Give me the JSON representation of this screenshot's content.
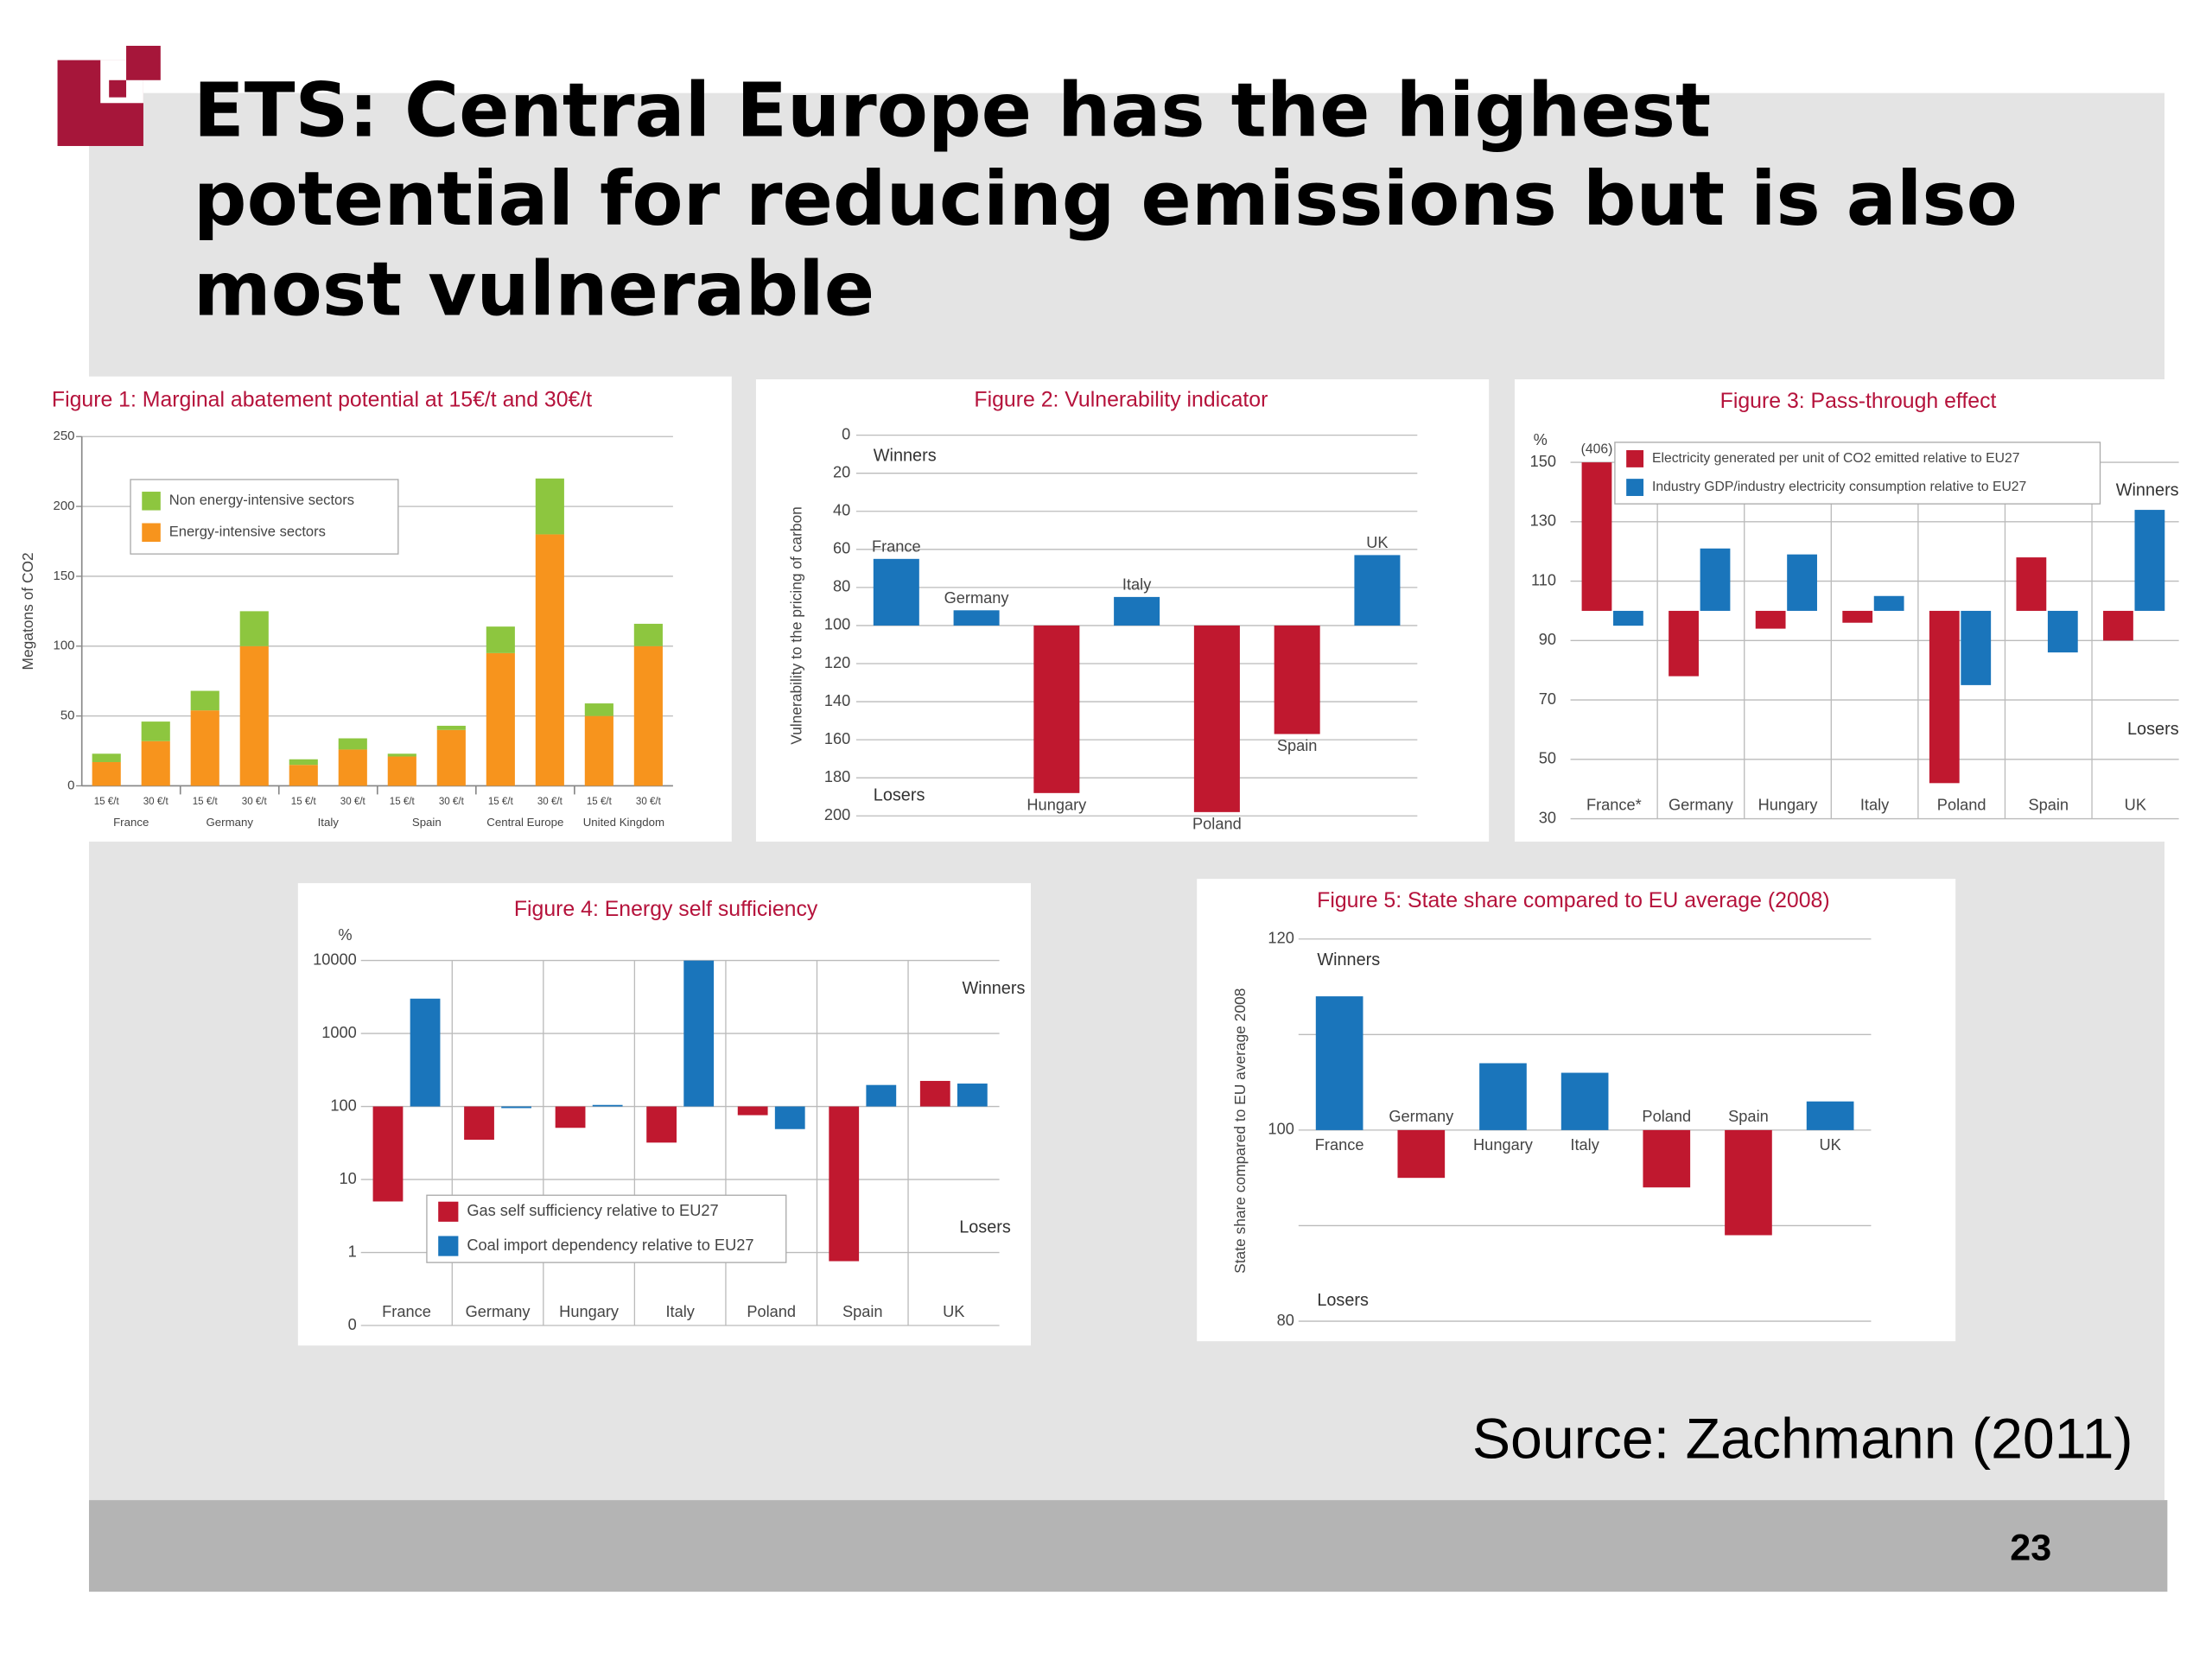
{
  "title": [
    "ETS: Central Europe has the highest",
    "potential for reducing emissions but is also",
    "most vulnerable"
  ],
  "source": "Source: Zachmann (2011)",
  "page_number": "23",
  "chart_data": [
    {
      "type": "stacked_bar",
      "title": "Figure 1: Marginal abatement potential at 15€/t and 30€/t",
      "ylabel": "Megatons of CO2",
      "categories": [
        "15 €/t",
        "30 €/t",
        "15 €/t",
        "30 €/t",
        "15 €/t",
        "30 €/t",
        "15 €/t",
        "30 €/t",
        "15 €/t",
        "30 €/t",
        "15 €/t",
        "30 €/t"
      ],
      "groups": [
        "France",
        "Germany",
        "Italy",
        "Spain",
        "Central Europe",
        "United Kingdom"
      ],
      "series": [
        {
          "name": "Energy-intensive sectors",
          "color": "#f7941d",
          "values": [
            17,
            32,
            54,
            100,
            15,
            26,
            21,
            40,
            95,
            180,
            50,
            100
          ]
        },
        {
          "name": "Non energy-intensive sectors",
          "color": "#8dc63f",
          "values": [
            6,
            14,
            14,
            25,
            4,
            8,
            2,
            3,
            19,
            40,
            9,
            16
          ]
        }
      ],
      "ylim": [
        0,
        250
      ],
      "yticks": [
        0,
        50,
        100,
        150,
        200,
        250
      ],
      "grid": true
    },
    {
      "type": "baseline_bar",
      "title": "Figure 2: Vulnerability indicator",
      "ylabel": "Vulnerability to the pricing of carbon",
      "categories": [
        "France",
        "Germany",
        "Hungary",
        "Italy",
        "Poland",
        "Spain",
        "UK"
      ],
      "values": [
        65,
        92,
        188,
        85,
        198,
        157,
        63
      ],
      "colors": [
        "#1a75bb",
        "#1a75bb",
        "#c0182f",
        "#1a75bb",
        "#c0182f",
        "#c0182f",
        "#1a75bb"
      ],
      "baseline": 100,
      "ylim": [
        0,
        200
      ],
      "y_inverted": true,
      "yticks": [
        0,
        20,
        40,
        60,
        80,
        100,
        120,
        140,
        160,
        180,
        200
      ],
      "grid": true,
      "annotations": [
        "Winners",
        "Losers"
      ]
    },
    {
      "type": "grouped_baseline_bar",
      "title": "Figure 3: Pass-through effect",
      "yunit": "%",
      "categories": [
        "France*",
        "Germany",
        "Hungary",
        "Italy",
        "Poland",
        "Spain",
        "UK"
      ],
      "series": [
        {
          "name": "Electricity generated per unit of CO2 emitted relative to EU27",
          "color": "#c0182f",
          "values": [
            406,
            78,
            94,
            96,
            42,
            118,
            90
          ],
          "value_labels": [
            "(406)",
            null,
            null,
            null,
            null,
            null,
            null
          ]
        },
        {
          "name": "Industry GDP/industry electricity consumption relative to EU27",
          "color": "#1a75bb",
          "values": [
            95,
            121,
            119,
            105,
            75,
            86,
            134
          ]
        }
      ],
      "baseline": 100,
      "ylim": [
        30,
        150
      ],
      "yticks": [
        30,
        50,
        70,
        90,
        110,
        130,
        150
      ],
      "grid": true,
      "annotations": [
        "Winners",
        "Losers"
      ]
    },
    {
      "type": "grouped_baseline_bar",
      "title": "Figure 4: Energy self sufficiency",
      "yunit": "%",
      "categories": [
        "France",
        "Germany",
        "Hungary",
        "Italy",
        "Poland",
        "Spain",
        "UK"
      ],
      "series": [
        {
          "name": "Gas self sufficiency relative to EU27",
          "color": "#c0182f",
          "values": [
            5,
            35,
            51,
            32,
            76,
            0.76,
            224
          ]
        },
        {
          "name": "Coal import dependency relative to EU27",
          "color": "#1a75bb",
          "values": [
            3000,
            95,
            105,
            10000,
            49,
            197,
            206
          ]
        }
      ],
      "baseline": 100,
      "log_scale": true,
      "ylim": [
        0.1,
        10000
      ],
      "yticks": [
        {
          "value": 0.1,
          "label": "0"
        },
        1,
        10,
        100,
        1000,
        10000
      ],
      "grid": true,
      "annotations": [
        "Winners",
        "Losers"
      ]
    },
    {
      "type": "baseline_bar",
      "title": "Figure 5: State share compared to EU average (2008)",
      "ylabel": "State share compared to EU average 2008",
      "categories": [
        "France",
        "Germany",
        "Hungary",
        "Italy",
        "Poland",
        "Spain",
        "UK"
      ],
      "values": [
        114,
        95,
        107,
        106,
        94,
        89,
        103
      ],
      "colors": [
        "#1a75bb",
        "#c0182f",
        "#1a75bb",
        "#1a75bb",
        "#c0182f",
        "#c0182f",
        "#1a75bb"
      ],
      "baseline": 100,
      "ylim": [
        80,
        120
      ],
      "yticks": [
        80,
        100,
        120
      ],
      "grid_values": [
        80,
        90,
        100,
        110,
        120
      ],
      "annotations": [
        "Winners",
        "Losers"
      ]
    }
  ]
}
